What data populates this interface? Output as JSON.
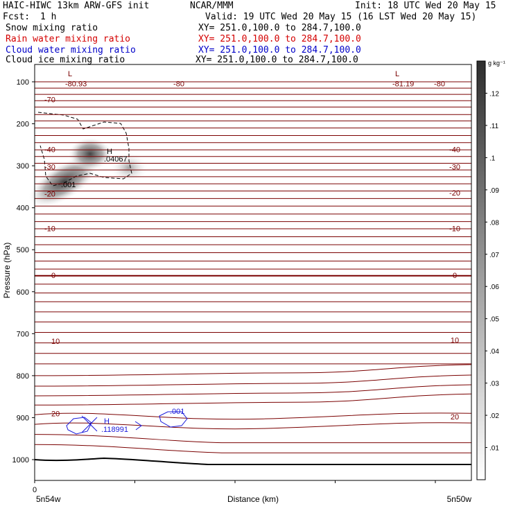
{
  "header": {
    "title": "HAIC-HIWC 13km ARW-GFS init",
    "org": "NCAR/MMM",
    "init": "Init: 18 UTC Wed 20 May 15",
    "fcst_label": "Fcst:",
    "fcst_value": "1 h",
    "valid": "Valid: 19 UTC Wed 20 May 15 (16 LST Wed 20 May 15)"
  },
  "fields": [
    {
      "name": "Snow mixing ratio",
      "xy": "XY= 251.0,100.0 to 284.7,100.0",
      "color": "#000000"
    },
    {
      "name": "Rain water mixing ratio",
      "xy": "XY= 251.0,100.0 to 284.7,100.0",
      "color": "#d40000"
    },
    {
      "name": "Cloud water mixing ratio",
      "xy": "XY= 251.0,100.0 to 284.7,100.0",
      "color": "#0000c8"
    },
    {
      "name": "Cloud ice mixing ratio",
      "xy": "XY= 251.0,100.0 to 284.7,100.0",
      "color": "#000000"
    }
  ],
  "chart_data": {
    "type": "contour",
    "ylabel": "Pressure (hPa)",
    "xlabel": "Distance (km)",
    "ylim": [
      1050,
      50
    ],
    "y_ticks": [
      100,
      200,
      300,
      400,
      500,
      600,
      700,
      800,
      900,
      1000
    ],
    "x_tick_label": "0",
    "x_left_label": "5n54w",
    "x_right_label": "5n50w",
    "colorbar": {
      "unit": "g kg⁻¹",
      "ticks": [
        ".01",
        ".02",
        ".03",
        ".04",
        ".05",
        ".06",
        ".07",
        ".08",
        ".09",
        ".1",
        ".11",
        ".12"
      ],
      "max": 0.13
    },
    "temperature_contours": {
      "color": "#7a0000",
      "labels_left": [
        {
          "p": 104,
          "text": "-80.93"
        },
        {
          "p": 142,
          "text": "-70"
        },
        {
          "p": 261,
          "text": "-40"
        },
        {
          "p": 302,
          "text": "-30"
        },
        {
          "p": 367,
          "text": "-20"
        },
        {
          "p": 449,
          "text": "-10"
        },
        {
          "p": 561,
          "text": "0"
        },
        {
          "p": 718,
          "text": "10"
        },
        {
          "p": 890,
          "text": "20"
        }
      ],
      "labels_right": [
        {
          "p": 104,
          "text": "-81.19"
        },
        {
          "p": 261,
          "text": "-40"
        },
        {
          "p": 302,
          "text": "-30"
        },
        {
          "p": 364,
          "text": "-20"
        },
        {
          "p": 449,
          "text": "-10"
        },
        {
          "p": 561,
          "text": "0"
        },
        {
          "p": 715,
          "text": "10"
        },
        {
          "p": 898,
          "text": "20"
        }
      ],
      "mid_label": {
        "p": 104,
        "text": "-80"
      },
      "right_mid_label": {
        "p": 104,
        "text": "-80"
      },
      "lows": [
        "L",
        "L"
      ]
    },
    "ice_extremum": {
      "symbol": "H",
      "value": ".04067"
    },
    "ice_label": ".001",
    "cloud_water": {
      "symbol": "H",
      "value": ".118991",
      "contour_label": ".001"
    }
  }
}
